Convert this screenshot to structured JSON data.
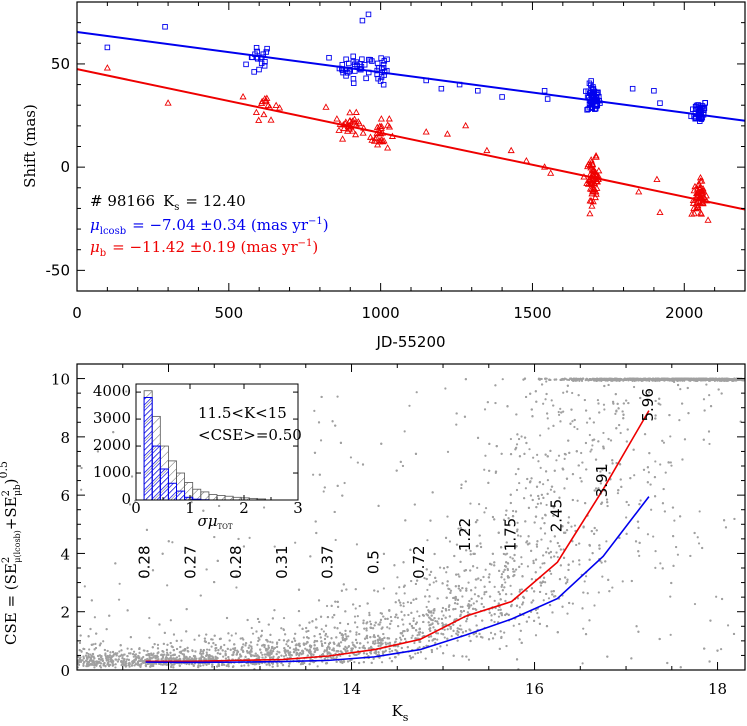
{
  "chart_data": [
    {
      "type": "scatter",
      "panel": "top",
      "xlabel": "JD-55200",
      "ylabel": "Shift (mas)",
      "xlim": [
        0,
        2200
      ],
      "ylim": [
        -60,
        80
      ],
      "xticks": [
        0,
        500,
        1000,
        1500,
        2000
      ],
      "yticks": [
        -50,
        0,
        50
      ],
      "grid": false,
      "annotations": {
        "star": "# 98166",
        "ks_label": "K",
        "ks_sub": "s",
        "ks_value": "= 12.40",
        "mu_l_symbol": "μ",
        "mu_l_sub": "lcosb",
        "mu_l_text": "= −7.04 ±0.34 (mas yr",
        "mu_b_symbol": "μ",
        "mu_b_sub": "b",
        "mu_b_text": "= −11.42 ±0.19 (mas yr",
        "unit_exp": "−1",
        "close_paren": ")"
      },
      "colors": {
        "l": "#0000ee",
        "b": "#ee0000"
      },
      "fit_lines": [
        {
          "name": "mu_lcosb",
          "color": "#0000ee",
          "x": [
            0,
            2200
          ],
          "y": [
            65.5,
            22.5
          ]
        },
        {
          "name": "mu_b",
          "color": "#ee0000",
          "x": [
            0,
            2200
          ],
          "y": [
            47.5,
            -20.5
          ]
        }
      ],
      "series": [
        {
          "name": "mu_lcosb epochs",
          "marker": "square",
          "color": "#0000ee",
          "clusters": [
            {
              "x": 600,
              "y": 52,
              "n": 18,
              "sx": 30,
              "sy": 6
            },
            {
              "x": 920,
              "y": 48,
              "n": 30,
              "sx": 40,
              "sy": 4
            },
            {
              "x": 1000,
              "y": 47,
              "n": 18,
              "sx": 20,
              "sy": 5
            },
            {
              "x": 1700,
              "y": 33,
              "n": 60,
              "sx": 15,
              "sy": 5
            },
            {
              "x": 2050,
              "y": 27,
              "n": 45,
              "sx": 18,
              "sy": 4
            }
          ],
          "points": [
            {
              "x": 100,
              "y": 58
            },
            {
              "x": 290,
              "y": 68
            },
            {
              "x": 830,
              "y": 53
            },
            {
              "x": 940,
              "y": 71
            },
            {
              "x": 960,
              "y": 74
            },
            {
              "x": 1150,
              "y": 42
            },
            {
              "x": 1200,
              "y": 38
            },
            {
              "x": 1260,
              "y": 40
            },
            {
              "x": 1320,
              "y": 37
            },
            {
              "x": 1400,
              "y": 34
            },
            {
              "x": 1540,
              "y": 37
            },
            {
              "x": 1550,
              "y": 33
            },
            {
              "x": 1900,
              "y": 37
            },
            {
              "x": 1920,
              "y": 31
            },
            {
              "x": 1830,
              "y": 38
            }
          ]
        },
        {
          "name": "mu_b epochs",
          "marker": "triangle",
          "color": "#ee0000",
          "clusters": [
            {
              "x": 620,
              "y": 30,
              "n": 15,
              "sx": 30,
              "sy": 5
            },
            {
              "x": 900,
              "y": 20,
              "n": 30,
              "sx": 35,
              "sy": 4
            },
            {
              "x": 1000,
              "y": 16,
              "n": 25,
              "sx": 20,
              "sy": 6
            },
            {
              "x": 1700,
              "y": -6,
              "n": 60,
              "sx": 15,
              "sy": 7
            },
            {
              "x": 2050,
              "y": -15,
              "n": 55,
              "sx": 18,
              "sy": 6
            }
          ],
          "points": [
            {
              "x": 100,
              "y": 48
            },
            {
              "x": 300,
              "y": 31
            },
            {
              "x": 820,
              "y": 29
            },
            {
              "x": 1150,
              "y": 17
            },
            {
              "x": 1220,
              "y": 16
            },
            {
              "x": 1280,
              "y": 20
            },
            {
              "x": 1350,
              "y": 8
            },
            {
              "x": 1430,
              "y": 8
            },
            {
              "x": 1480,
              "y": 3
            },
            {
              "x": 1540,
              "y": 0
            },
            {
              "x": 1560,
              "y": -3
            },
            {
              "x": 1910,
              "y": -6
            },
            {
              "x": 1920,
              "y": -22
            },
            {
              "x": 1850,
              "y": -12
            }
          ]
        }
      ]
    },
    {
      "type": "scatter",
      "panel": "bottom",
      "xlabel_main": "K",
      "xlabel_sub": "s",
      "ylabel_left": "CSE = (SE",
      "ylabel_mid": "+SE",
      "ylabel_close": ")",
      "ylabel_exp": "0.5",
      "ylabel_sub1": "μ(lcosb)",
      "ylabel_sub2": "μb",
      "ylabel_sq": "2",
      "xlim": [
        11,
        18.3
      ],
      "ylim": [
        0,
        10.5
      ],
      "xticks": [
        12,
        14,
        16,
        18
      ],
      "yticks": [
        0,
        2,
        4,
        6,
        8,
        10
      ],
      "point_color": "#a0a0a0",
      "lines": [
        {
          "name": "mu_b",
          "color": "#ee0000",
          "x": [
            11.75,
            12.25,
            12.75,
            13.25,
            13.75,
            14.25,
            14.75,
            15.25,
            15.75,
            16.25,
            16.75,
            17.25
          ],
          "y": [
            0.3,
            0.3,
            0.33,
            0.36,
            0.48,
            0.7,
            1.05,
            1.85,
            2.35,
            3.7,
            6.2,
            8.9
          ]
        },
        {
          "name": "mu_lcosb",
          "color": "#0000ee",
          "x": [
            11.75,
            12.25,
            12.75,
            13.25,
            13.75,
            14.25,
            14.75,
            15.25,
            15.75,
            16.25,
            16.75,
            17.25
          ],
          "y": [
            0.27,
            0.26,
            0.27,
            0.29,
            0.33,
            0.45,
            0.7,
            1.2,
            1.75,
            2.45,
            3.9,
            5.95
          ]
        }
      ],
      "median_labels": {
        "x": [
          11.75,
          12.25,
          12.75,
          13.25,
          13.75,
          14.25,
          14.75,
          15.25,
          15.75,
          16.25,
          16.75,
          17.25
        ],
        "y": [
          3.7,
          3.7,
          3.7,
          3.7,
          3.7,
          3.7,
          3.7,
          4.65,
          4.65,
          5.3,
          6.5,
          9.1
        ],
        "text": [
          "0.28",
          "0.27",
          "0.28",
          "0.31",
          "0.37",
          "0.5",
          "0.72",
          "1.22",
          "1.75",
          "2.45",
          "3.91",
          "5.96"
        ]
      },
      "inset": {
        "type": "histogram",
        "xlabel": "σμ",
        "xlabel_sub": "TOT",
        "xlim": [
          0,
          3
        ],
        "ylim": [
          0,
          4300
        ],
        "xticks": [
          0,
          1,
          2,
          3
        ],
        "yticks": [
          0,
          1000,
          2000,
          3000,
          4000
        ],
        "text_range": "11.5<K<15",
        "text_cse": "<CSE>=0.50",
        "bin_edges": [
          0.15,
          0.3,
          0.45,
          0.6,
          0.75,
          0.9,
          1.05,
          1.2,
          1.35,
          1.5,
          1.65,
          1.8,
          1.95,
          2.1,
          2.25,
          2.4
        ],
        "blue_counts": [
          3800,
          2000,
          1150,
          620,
          330,
          100,
          30,
          10,
          0,
          0,
          0,
          0,
          0,
          0,
          0
        ],
        "gray_counts": [
          4050,
          3100,
          2000,
          1450,
          1000,
          650,
          400,
          300,
          200,
          170,
          140,
          100,
          80,
          60,
          40
        ],
        "colors": {
          "blue": "#0000ee",
          "gray": "#555555"
        }
      }
    }
  ]
}
